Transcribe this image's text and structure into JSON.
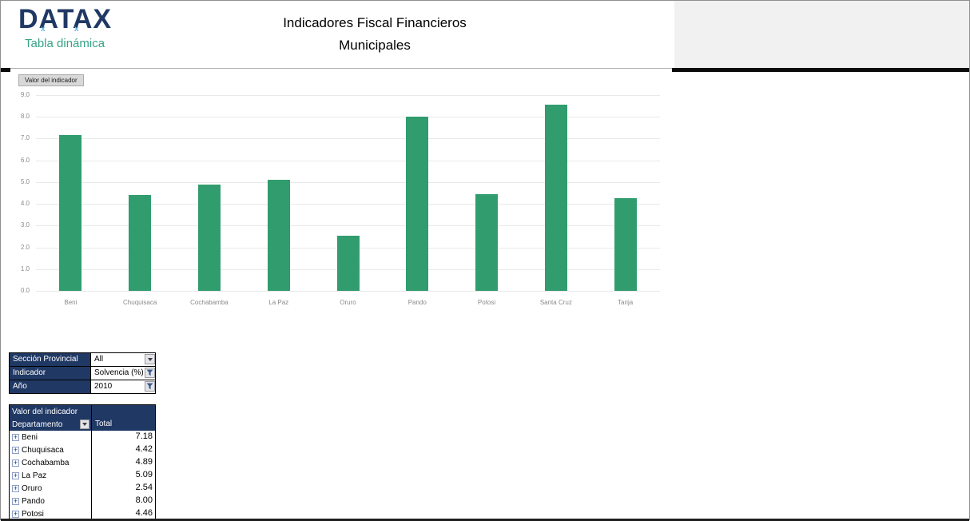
{
  "header": {
    "logo": {
      "text": "DATAX",
      "subtitle": "Tabla dinámica"
    },
    "title_line1": "Indicadores Fiscal Financieros",
    "title_line2": "Municipales"
  },
  "colors": {
    "navy": "#203864",
    "teal": "#35a385",
    "bar_green": "#319d6e",
    "gridline": "#e9e9e9",
    "axis_text": "#8a8a8a"
  },
  "chart_data": {
    "type": "bar",
    "title": "",
    "xlabel": "",
    "ylabel": "",
    "field_button_label": "Valor del indicador",
    "categories": [
      "Beni",
      "Chuquisaca",
      "Cochabamba",
      "La Paz",
      "Oruro",
      "Pando",
      "Potosi",
      "Santa Cruz",
      "Tarija"
    ],
    "values": [
      7.18,
      4.42,
      4.89,
      5.09,
      2.54,
      8.0,
      4.46,
      8.56,
      4.26
    ],
    "ylim": [
      0,
      9
    ],
    "ytick_step": 1,
    "grid": true,
    "legend_position": "none",
    "bar_color": "#319d6e"
  },
  "filters": {
    "rows": [
      {
        "label": "Sección Provincial",
        "value": "All",
        "icon": "dropdown-arrow"
      },
      {
        "label": "Indicador",
        "value": "Solvencia (%)",
        "icon": "filter-funnel"
      },
      {
        "label": "Año",
        "value": "2010",
        "icon": "filter-funnel"
      }
    ]
  },
  "pivot": {
    "title": "Valor del indicador",
    "row_header": "Departamento",
    "value_header": "Total",
    "rows": [
      {
        "label": "Beni",
        "value": "7.18"
      },
      {
        "label": "Chuquisaca",
        "value": "4.42"
      },
      {
        "label": "Cochabamba",
        "value": "4.89"
      },
      {
        "label": "La Paz",
        "value": "5.09"
      },
      {
        "label": "Oruro",
        "value": "2.54"
      },
      {
        "label": "Pando",
        "value": "8.00"
      },
      {
        "label": "Potosi",
        "value": "4.46"
      }
    ]
  }
}
